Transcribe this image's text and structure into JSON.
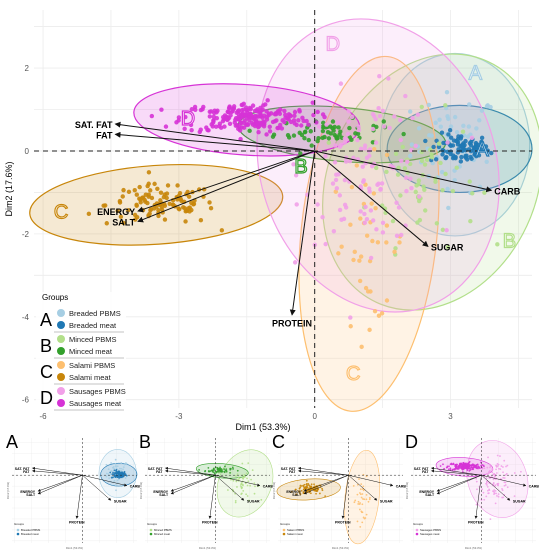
{
  "chart_data": [
    {
      "type": "scatter",
      "subtype": "PCA biplot",
      "xlabel": "Dim1 (53.3%)",
      "ylabel": "Dim2 (17.6%)",
      "xlim": [
        -6.2,
        4.8
      ],
      "ylim": [
        -6.2,
        3.4
      ],
      "x_ticks": [
        -6,
        -3,
        0,
        3
      ],
      "y_ticks": [
        -6,
        -4,
        -2,
        0,
        2
      ],
      "grid": true,
      "reference_lines": {
        "x": 0,
        "y": 0,
        "style": "dashed"
      },
      "legend": {
        "title": "Groups",
        "position": "bottom-left",
        "groups": [
          {
            "letter": "A",
            "entries": [
              "Breaded PBMS",
              "Breaded meat"
            ]
          },
          {
            "letter": "B",
            "entries": [
              "Minced PBMS",
              "Minced meat"
            ]
          },
          {
            "letter": "C",
            "entries": [
              "Salami PBMS",
              "Salami meat"
            ]
          },
          {
            "letter": "D",
            "entries": [
              "Sausages PBMS",
              "Sausages meat"
            ]
          }
        ]
      },
      "loadings": [
        {
          "label": "SAT. FAT",
          "x": -4.4,
          "y": 0.65
        },
        {
          "label": "FAT",
          "x": -4.4,
          "y": 0.4
        },
        {
          "label": "ENERGY",
          "x": -3.9,
          "y": -1.45
        },
        {
          "label": "SALT",
          "x": -3.9,
          "y": -1.7
        },
        {
          "label": "CARB",
          "x": 3.9,
          "y": -0.95
        },
        {
          "label": "SUGAR",
          "x": 2.5,
          "y": -2.3
        },
        {
          "label": "PROTEIN",
          "x": -0.5,
          "y": -3.95
        }
      ],
      "ellipses": [
        {
          "name": "Breaded PBMS",
          "label": "A",
          "cx": 3.1,
          "cy": 0.15,
          "rx": 1.65,
          "ry": 2.2,
          "angle": 0,
          "color": "#a6cee3"
        },
        {
          "name": "Breaded meat",
          "label": "A",
          "cx": 3.2,
          "cy": 0.05,
          "rx": 1.6,
          "ry": 1.05,
          "angle": 0,
          "color": "#1f78b4"
        },
        {
          "name": "Minced PBMS",
          "label": "B",
          "cx": 2.6,
          "cy": -0.75,
          "rx": 2.3,
          "ry": 3.2,
          "angle": -25,
          "color": "#b2df8a"
        },
        {
          "name": "Minced meat",
          "label": "B",
          "cx": 0.6,
          "cy": 0.4,
          "rx": 2.3,
          "ry": 0.65,
          "angle": -5,
          "color": "#33a02c"
        },
        {
          "name": "Salami PBMS",
          "label": "C",
          "cx": 1.2,
          "cy": -2.0,
          "rx": 1.5,
          "ry": 4.3,
          "angle": -6,
          "color": "#fdbf6f"
        },
        {
          "name": "Salami meat",
          "label": "C",
          "cx": -3.5,
          "cy": -1.3,
          "rx": 2.8,
          "ry": 0.95,
          "angle": 4,
          "color": "#c8860a"
        },
        {
          "name": "Sausages PBMS",
          "label": "D",
          "cx": 1.4,
          "cy": -0.35,
          "rx": 2.6,
          "ry": 3.6,
          "angle": 18,
          "color": "#f1a0e8"
        },
        {
          "name": "Sausages meat",
          "label": "D",
          "cx": -1.5,
          "cy": 0.75,
          "rx": 2.5,
          "ry": 0.85,
          "angle": -4,
          "color": "#d633d6"
        }
      ],
      "series": [
        {
          "name": "Breaded PBMS",
          "color": "#a6cee3",
          "n": 60,
          "center": [
            3.1,
            0.2
          ],
          "spread": [
            0.8,
            1.0
          ]
        },
        {
          "name": "Breaded meat",
          "color": "#1f78b4",
          "n": 90,
          "center": [
            3.2,
            0.05
          ],
          "spread": [
            0.55,
            0.3
          ]
        },
        {
          "name": "Minced PBMS",
          "color": "#b2df8a",
          "n": 60,
          "center": [
            2.4,
            -0.7
          ],
          "spread": [
            1.0,
            1.3
          ]
        },
        {
          "name": "Minced meat",
          "color": "#33a02c",
          "n": 60,
          "center": [
            0.3,
            0.45
          ],
          "spread": [
            1.0,
            0.25
          ]
        },
        {
          "name": "Salami PBMS",
          "color": "#fdbf6f",
          "n": 40,
          "center": [
            1.2,
            -2.2
          ],
          "spread": [
            0.7,
            1.6
          ]
        },
        {
          "name": "Salami meat",
          "color": "#c8860a",
          "n": 110,
          "center": [
            -3.4,
            -1.3
          ],
          "spread": [
            1.0,
            0.4
          ]
        },
        {
          "name": "Sausages PBMS",
          "color": "#f1a0e8",
          "n": 120,
          "center": [
            1.2,
            -0.4
          ],
          "spread": [
            1.2,
            1.5
          ]
        },
        {
          "name": "Sausages meat",
          "color": "#d633d6",
          "n": 220,
          "center": [
            -1.5,
            0.8
          ],
          "spread": [
            1.2,
            0.3
          ]
        }
      ]
    },
    {
      "type": "scatter",
      "panel": "A",
      "xlabel": "Dim1 (53.3%)",
      "ylabel": "Dim2 (17.6%)",
      "highlight": [
        "Breaded PBMS",
        "Breaded meat"
      ],
      "legend": {
        "title": "Groups",
        "entries": [
          "Breaded PBMS",
          "Breaded meat"
        ]
      }
    },
    {
      "type": "scatter",
      "panel": "B",
      "xlabel": "Dim1 (53.3%)",
      "ylabel": "Dim2 (17.6%)",
      "highlight": [
        "Minced PBMS",
        "Minced meat"
      ],
      "legend": {
        "title": "Groups",
        "entries": [
          "Minced PBMS",
          "Minced meat"
        ]
      }
    },
    {
      "type": "scatter",
      "panel": "C",
      "xlabel": "Dim1 (53.3%)",
      "ylabel": "Dim2 (17.6%)",
      "highlight": [
        "Salami PBMS",
        "Salami meat"
      ],
      "legend": {
        "title": "Groups",
        "entries": [
          "Salami PBMS",
          "Salami meat"
        ]
      }
    },
    {
      "type": "scatter",
      "panel": "D",
      "xlabel": "Dim1 (53.3%)",
      "ylabel": "Dim2 (17.6%)",
      "highlight": [
        "Sausages PBMS",
        "Sausages meat"
      ],
      "legend": {
        "title": "Groups",
        "entries": [
          "Sausages PBMS",
          "Sausages meat"
        ]
      }
    }
  ]
}
